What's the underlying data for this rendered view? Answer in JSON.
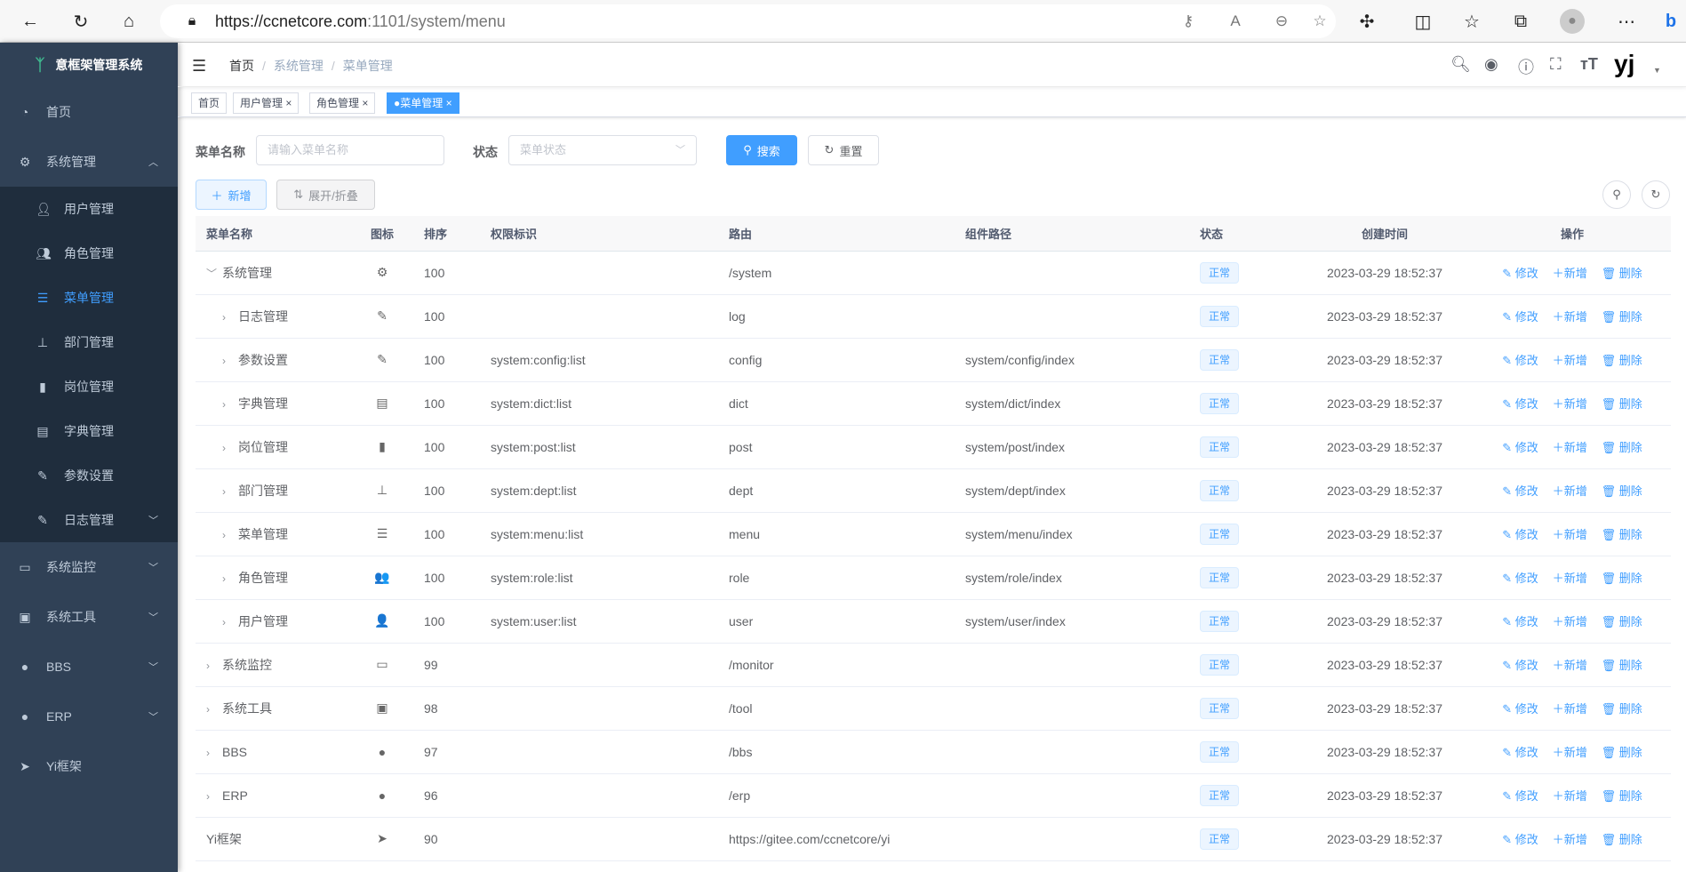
{
  "browser": {
    "url_host": "https://ccnetcore.com",
    "url_path": ":1101/system/menu",
    "icons": [
      "back-icon",
      "refresh-icon",
      "home-icon",
      "lock-icon",
      "key-icon",
      "read-aloud-icon",
      "zoom-out-icon",
      "favorite-add-icon",
      "extensions-icon",
      "split-screen-icon",
      "favorites-icon",
      "collections-icon",
      "profile-icon",
      "more-icon",
      "bing-icon"
    ]
  },
  "sidebar": {
    "title": "意框架管理系统",
    "items": [
      {
        "label": "首页",
        "icon": "dashboard-icon"
      },
      {
        "label": "系统管理",
        "icon": "gear-icon",
        "expanded": true,
        "children": [
          {
            "label": "用户管理",
            "icon": "user-icon"
          },
          {
            "label": "角色管理",
            "icon": "peoples-icon"
          },
          {
            "label": "菜单管理",
            "icon": "tree-table-icon",
            "active": true
          },
          {
            "label": "部门管理",
            "icon": "tree-icon"
          },
          {
            "label": "岗位管理",
            "icon": "post-icon"
          },
          {
            "label": "字典管理",
            "icon": "dict-icon"
          },
          {
            "label": "参数设置",
            "icon": "edit-icon"
          },
          {
            "label": "日志管理",
            "icon": "log-icon"
          }
        ]
      },
      {
        "label": "系统监控",
        "icon": "monitor-icon"
      },
      {
        "label": "系统工具",
        "icon": "tool-icon"
      },
      {
        "label": "BBS",
        "icon": "globe-icon"
      },
      {
        "label": "ERP",
        "icon": "globe-icon"
      },
      {
        "label": "Yi框架",
        "icon": "send-icon"
      }
    ]
  },
  "navbar": {
    "breadcrumb": [
      "首页",
      "系统管理",
      "菜单管理"
    ],
    "avatar_text": "yj"
  },
  "tags": [
    {
      "label": "首页"
    },
    {
      "label": "用户管理"
    },
    {
      "label": "角色管理"
    },
    {
      "label": "菜单管理",
      "active": true
    }
  ],
  "search": {
    "name_label": "菜单名称",
    "name_placeholder": "请输入菜单名称",
    "status_label": "状态",
    "status_placeholder": "菜单状态",
    "search_btn": "搜索",
    "reset_btn": "重置"
  },
  "toolbar": {
    "add_btn": "新增",
    "expand_btn": "展开/折叠"
  },
  "table": {
    "headers": [
      "菜单名称",
      "图标",
      "排序",
      "权限标识",
      "路由",
      "组件路径",
      "状态",
      "创建时间",
      "操作"
    ],
    "actions": [
      "修改",
      "新增",
      "删除"
    ],
    "rows": [
      {
        "name": "系统管理",
        "level": 0,
        "tree": "expanded",
        "icon": "⚙",
        "sort": "100",
        "perm": "",
        "route": "/system",
        "component": "",
        "status": "正常",
        "created": "2023-03-29 18:52:37"
      },
      {
        "name": "日志管理",
        "level": 1,
        "tree": "collapsed",
        "icon": "✎",
        "sort": "100",
        "perm": "",
        "route": "log",
        "component": "",
        "status": "正常",
        "created": "2023-03-29 18:52:37"
      },
      {
        "name": "参数设置",
        "level": 1,
        "tree": "collapsed",
        "icon": "✎",
        "sort": "100",
        "perm": "system:config:list",
        "route": "config",
        "component": "system/config/index",
        "status": "正常",
        "created": "2023-03-29 18:52:37"
      },
      {
        "name": "字典管理",
        "level": 1,
        "tree": "collapsed",
        "icon": "▤",
        "sort": "100",
        "perm": "system:dict:list",
        "route": "dict",
        "component": "system/dict/index",
        "status": "正常",
        "created": "2023-03-29 18:52:37"
      },
      {
        "name": "岗位管理",
        "level": 1,
        "tree": "collapsed",
        "icon": "▮",
        "sort": "100",
        "perm": "system:post:list",
        "route": "post",
        "component": "system/post/index",
        "status": "正常",
        "created": "2023-03-29 18:52:37"
      },
      {
        "name": "部门管理",
        "level": 1,
        "tree": "collapsed",
        "icon": "⊥",
        "sort": "100",
        "perm": "system:dept:list",
        "route": "dept",
        "component": "system/dept/index",
        "status": "正常",
        "created": "2023-03-29 18:52:37"
      },
      {
        "name": "菜单管理",
        "level": 1,
        "tree": "collapsed",
        "icon": "☰",
        "sort": "100",
        "perm": "system:menu:list",
        "route": "menu",
        "component": "system/menu/index",
        "status": "正常",
        "created": "2023-03-29 18:52:37"
      },
      {
        "name": "角色管理",
        "level": 1,
        "tree": "collapsed",
        "icon": "👥",
        "sort": "100",
        "perm": "system:role:list",
        "route": "role",
        "component": "system/role/index",
        "status": "正常",
        "created": "2023-03-29 18:52:37"
      },
      {
        "name": "用户管理",
        "level": 1,
        "tree": "collapsed",
        "icon": "👤",
        "sort": "100",
        "perm": "system:user:list",
        "route": "user",
        "component": "system/user/index",
        "status": "正常",
        "created": "2023-03-29 18:52:37"
      },
      {
        "name": "系统监控",
        "level": 0,
        "tree": "collapsed",
        "icon": "▭",
        "sort": "99",
        "perm": "",
        "route": "/monitor",
        "component": "",
        "status": "正常",
        "created": "2023-03-29 18:52:37"
      },
      {
        "name": "系统工具",
        "level": 0,
        "tree": "collapsed",
        "icon": "▣",
        "sort": "98",
        "perm": "",
        "route": "/tool",
        "component": "",
        "status": "正常",
        "created": "2023-03-29 18:52:37"
      },
      {
        "name": "BBS",
        "level": 0,
        "tree": "collapsed",
        "icon": "●",
        "sort": "97",
        "perm": "",
        "route": "/bbs",
        "component": "",
        "status": "正常",
        "created": "2023-03-29 18:52:37"
      },
      {
        "name": "ERP",
        "level": 0,
        "tree": "collapsed",
        "icon": "●",
        "sort": "96",
        "perm": "",
        "route": "/erp",
        "component": "",
        "status": "正常",
        "created": "2023-03-29 18:52:37"
      },
      {
        "name": "Yi框架",
        "level": 0,
        "tree": "none",
        "icon": "➤",
        "sort": "90",
        "perm": "",
        "route": "https://gitee.com/ccnetcore/yi",
        "component": "",
        "status": "正常",
        "created": "2023-03-29 18:52:37"
      }
    ]
  },
  "colors": {
    "sidebar_bg": "#304156",
    "submenu_bg": "#1f2d3d",
    "primary": "#409eff"
  }
}
